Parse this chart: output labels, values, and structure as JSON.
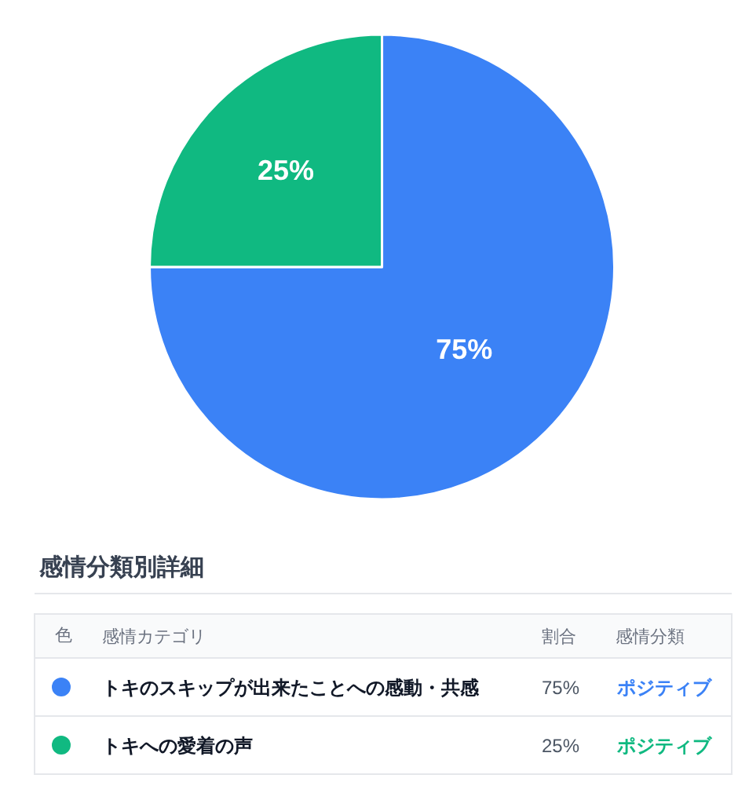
{
  "chart_data": {
    "type": "pie",
    "categories": [
      "トキのスキップが出来たことへの感動・共感",
      "トキへの愛着の声"
    ],
    "values": [
      75,
      25
    ],
    "colors": [
      "#3b82f6",
      "#10b981"
    ],
    "value_labels": [
      "75%",
      "25%"
    ],
    "legend": "bottom",
    "annotations": [
      "感情分類別詳細",
      "色",
      "感情カテゴリ",
      "割合",
      "感情分類",
      "ポジティブ",
      "ポジティブ"
    ]
  }
}
